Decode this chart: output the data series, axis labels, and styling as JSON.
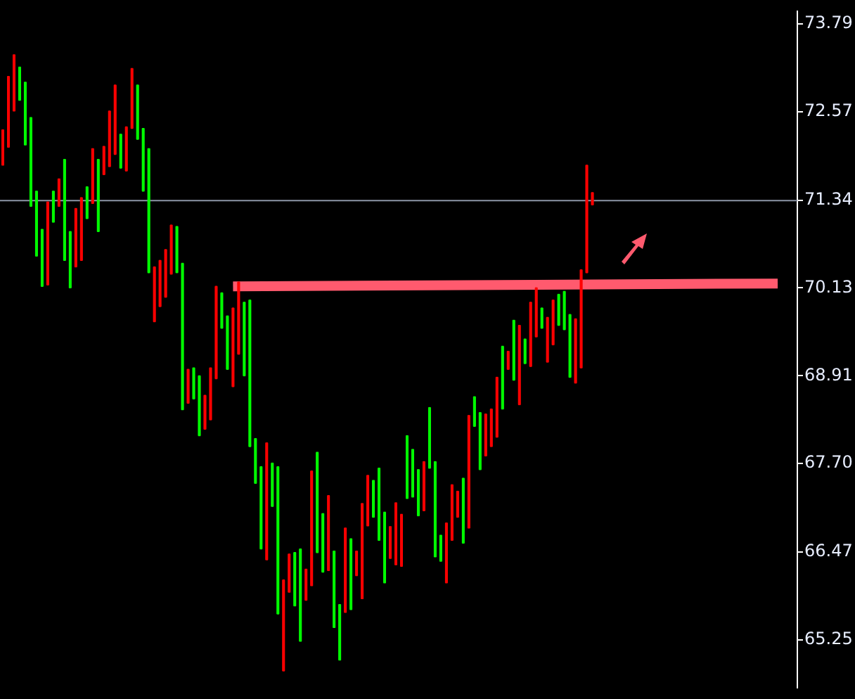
{
  "chart_data": {
    "type": "candlestick",
    "categories": [
      null,
      null,
      null,
      null,
      null,
      null,
      null,
      null,
      null,
      null,
      null,
      null,
      null,
      null,
      null,
      null,
      null,
      null,
      null,
      null,
      null,
      null,
      null,
      null,
      null,
      null,
      null,
      null,
      null,
      null,
      null,
      null,
      null,
      null,
      null,
      null,
      null,
      null,
      null,
      null,
      null,
      null,
      null,
      null,
      null,
      null,
      null,
      null,
      null,
      null,
      null,
      null,
      null,
      null,
      null,
      null,
      null,
      null,
      null,
      null,
      null,
      null,
      null,
      null,
      null,
      null,
      null,
      null,
      null,
      null,
      null,
      null,
      null,
      null,
      null,
      null,
      null,
      null,
      null,
      null,
      null,
      null,
      null,
      null,
      null,
      null,
      null,
      null,
      null,
      null,
      null,
      null,
      null,
      null,
      null,
      null,
      null,
      null,
      null,
      null,
      null,
      null,
      null,
      null,
      null,
      null,
      null,
      null,
      null,
      null,
      null,
      null,
      null,
      null,
      null,
      null,
      null,
      null,
      null,
      null,
      null,
      null,
      null,
      null,
      null,
      null,
      null,
      null,
      null,
      null,
      null,
      null,
      null,
      null,
      null,
      null,
      null,
      null,
      null,
      null,
      null,
      null
    ],
    "ohlc": [
      [
        71.83,
        72.32,
        71.83,
        72.32
      ],
      [
        72.08,
        73.06,
        72.08,
        73.06
      ],
      [
        72.58,
        73.36,
        72.58,
        73.36
      ],
      [
        73.19,
        73.19,
        72.73,
        72.73
      ],
      [
        72.98,
        72.98,
        72.11,
        72.11
      ],
      [
        72.49,
        72.49,
        71.26,
        71.26
      ],
      [
        71.47,
        71.47,
        70.57,
        70.57
      ],
      [
        70.94,
        70.94,
        70.15,
        70.15
      ],
      [
        70.17,
        71.32,
        70.17,
        71.32
      ],
      [
        71.47,
        71.47,
        71.04,
        71.04
      ],
      [
        71.26,
        71.64,
        71.26,
        71.64
      ],
      [
        71.91,
        71.91,
        70.51,
        70.51
      ],
      [
        70.91,
        70.91,
        70.13,
        70.13
      ],
      [
        70.42,
        71.23,
        70.42,
        71.23
      ],
      [
        70.51,
        71.38,
        70.51,
        71.38
      ],
      [
        71.53,
        71.53,
        71.09,
        71.09
      ],
      [
        71.3,
        72.06,
        71.3,
        72.06
      ],
      [
        71.91,
        71.91,
        70.91,
        70.91
      ],
      [
        71.7,
        72.09,
        71.7,
        72.09
      ],
      [
        71.81,
        72.58,
        71.81,
        72.58
      ],
      [
        71.98,
        72.94,
        71.98,
        72.94
      ],
      [
        72.26,
        72.26,
        71.79,
        71.79
      ],
      [
        71.75,
        72.36,
        71.75,
        72.36
      ],
      [
        72.34,
        73.17,
        72.34,
        73.17
      ],
      [
        72.94,
        72.94,
        72.19,
        72.19
      ],
      [
        72.34,
        72.34,
        71.47,
        71.47
      ],
      [
        72.06,
        72.06,
        70.34,
        70.34
      ],
      [
        69.66,
        70.42,
        69.66,
        70.42
      ],
      [
        69.87,
        70.51,
        69.87,
        70.51
      ],
      [
        70.0,
        70.66,
        70.0,
        70.66
      ],
      [
        70.32,
        71.0,
        70.32,
        71.0
      ],
      [
        70.98,
        70.98,
        70.34,
        70.34
      ],
      [
        70.47,
        70.47,
        68.44,
        68.44
      ],
      [
        68.53,
        69.0,
        68.53,
        69.0
      ],
      [
        69.02,
        69.02,
        68.59,
        68.59
      ],
      [
        68.91,
        68.91,
        68.08,
        68.08
      ],
      [
        68.17,
        68.64,
        68.17,
        68.64
      ],
      [
        68.3,
        69.02,
        68.3,
        69.02
      ],
      [
        68.87,
        70.15,
        68.87,
        70.15
      ],
      [
        70.06,
        70.06,
        69.57,
        69.57
      ],
      [
        69.74,
        69.74,
        69.0,
        69.0
      ],
      [
        68.76,
        69.85,
        68.76,
        69.85
      ],
      [
        69.21,
        70.21,
        69.21,
        70.21
      ],
      [
        69.93,
        69.93,
        68.91,
        68.91
      ],
      [
        69.96,
        69.96,
        67.93,
        67.93
      ],
      [
        68.04,
        68.04,
        67.42,
        67.42
      ],
      [
        67.65,
        67.65,
        66.51,
        66.51
      ],
      [
        66.36,
        67.98,
        66.36,
        67.98
      ],
      [
        67.7,
        67.7,
        67.1,
        67.1
      ],
      [
        67.65,
        67.65,
        65.61,
        65.61
      ],
      [
        64.82,
        66.08,
        64.82,
        66.08
      ],
      [
        65.91,
        66.44,
        65.91,
        66.44
      ],
      [
        66.46,
        66.46,
        65.72,
        65.72
      ],
      [
        66.51,
        66.51,
        65.23,
        65.23
      ],
      [
        65.8,
        66.23,
        65.8,
        66.23
      ],
      [
        66.0,
        67.59,
        66.0,
        67.59
      ],
      [
        67.85,
        67.85,
        66.46,
        66.46
      ],
      [
        67.0,
        67.0,
        66.19,
        66.19
      ],
      [
        66.21,
        67.25,
        66.21,
        67.25
      ],
      [
        66.48,
        66.48,
        65.42,
        65.42
      ],
      [
        65.74,
        65.74,
        64.97,
        64.97
      ],
      [
        65.63,
        66.8,
        65.63,
        66.8
      ],
      [
        66.65,
        66.65,
        65.67,
        65.67
      ],
      [
        66.14,
        66.48,
        66.14,
        66.48
      ],
      [
        65.82,
        67.14,
        65.82,
        67.14
      ],
      [
        66.83,
        67.53,
        66.83,
        67.53
      ],
      [
        67.46,
        67.46,
        66.95,
        66.95
      ],
      [
        67.63,
        67.63,
        66.63,
        66.63
      ],
      [
        67.02,
        67.02,
        66.04,
        66.04
      ],
      [
        66.38,
        66.82,
        66.38,
        66.82
      ],
      [
        66.29,
        67.15,
        66.29,
        67.15
      ],
      [
        66.27,
        66.99,
        66.27,
        66.99
      ],
      [
        68.08,
        68.08,
        67.21,
        67.21
      ],
      [
        67.89,
        67.89,
        67.23,
        67.23
      ],
      [
        67.61,
        67.61,
        66.97,
        66.97
      ],
      [
        67.04,
        67.72,
        67.04,
        67.72
      ],
      [
        68.47,
        68.47,
        67.63,
        67.63
      ],
      [
        67.72,
        67.72,
        66.4,
        66.4
      ],
      [
        66.7,
        66.7,
        66.34,
        66.34
      ],
      [
        66.04,
        66.87,
        66.04,
        66.87
      ],
      [
        66.63,
        67.4,
        66.63,
        67.4
      ],
      [
        66.95,
        67.31,
        66.95,
        67.31
      ],
      [
        67.49,
        67.49,
        66.59,
        66.59
      ],
      [
        66.8,
        68.36,
        66.8,
        68.36
      ],
      [
        68.62,
        68.62,
        68.21,
        68.21
      ],
      [
        68.4,
        68.4,
        67.61,
        67.61
      ],
      [
        67.8,
        68.38,
        67.8,
        68.38
      ],
      [
        67.93,
        68.45,
        67.93,
        68.45
      ],
      [
        68.06,
        68.89,
        68.06,
        68.89
      ],
      [
        69.32,
        69.32,
        68.45,
        68.45
      ],
      [
        69.0,
        69.25,
        69.0,
        69.25
      ],
      [
        69.68,
        69.68,
        68.85,
        68.85
      ],
      [
        68.51,
        69.61,
        68.51,
        69.61
      ],
      [
        69.42,
        69.42,
        69.08,
        69.08
      ],
      [
        69.04,
        69.93,
        69.04,
        69.93
      ],
      [
        69.45,
        70.13,
        69.45,
        70.13
      ],
      [
        69.85,
        69.85,
        69.57,
        69.57
      ],
      [
        69.1,
        69.72,
        69.1,
        69.72
      ],
      [
        69.34,
        69.96,
        69.34,
        69.96
      ],
      [
        70.04,
        70.04,
        69.61,
        69.61
      ],
      [
        70.08,
        70.08,
        69.55,
        69.55
      ],
      [
        69.76,
        69.76,
        68.89,
        68.89
      ],
      [
        68.81,
        69.7,
        68.81,
        69.7
      ],
      [
        69.02,
        70.38,
        69.02,
        70.38
      ],
      [
        70.34,
        71.83,
        70.34,
        71.83
      ],
      [
        71.28,
        71.45,
        71.28,
        71.45
      ],
      null,
      null,
      null,
      null,
      null,
      null,
      null,
      null,
      null,
      null,
      null,
      null,
      null,
      null,
      null,
      null,
      null,
      null,
      null,
      null,
      null,
      null,
      null,
      null,
      null,
      null,
      null,
      null,
      null,
      null,
      null,
      null,
      null,
      null,
      null,
      null
    ],
    "colors": [
      "#ff0000",
      "#ff0000",
      "#ff0000",
      "#00ff00",
      "#00ff00",
      "#00ff00",
      "#00ff00",
      "#00ff00",
      "#ff0000",
      "#00ff00",
      "#ff0000",
      "#00ff00",
      "#00ff00",
      "#ff0000",
      "#ff0000",
      "#00ff00",
      "#ff0000",
      "#00ff00",
      "#ff0000",
      "#ff0000",
      "#ff0000",
      "#00ff00",
      "#ff0000",
      "#ff0000",
      "#00ff00",
      "#00ff00",
      "#00ff00",
      "#ff0000",
      "#ff0000",
      "#ff0000",
      "#ff0000",
      "#00ff00",
      "#00ff00",
      "#ff0000",
      "#00ff00",
      "#00ff00",
      "#ff0000",
      "#ff0000",
      "#ff0000",
      "#00ff00",
      "#00ff00",
      "#ff0000",
      "#ff0000",
      "#00ff00",
      "#00ff00",
      "#00ff00",
      "#00ff00",
      "#ff0000",
      "#00ff00",
      "#00ff00",
      "#ff0000",
      "#ff0000",
      "#00ff00",
      "#00ff00",
      "#ff0000",
      "#ff0000",
      "#00ff00",
      "#00ff00",
      "#ff0000",
      "#00ff00",
      "#00ff00",
      "#ff0000",
      "#00ff00",
      "#ff0000",
      "#ff0000",
      "#ff0000",
      "#00ff00",
      "#00ff00",
      "#00ff00",
      "#ff0000",
      "#ff0000",
      "#ff0000",
      "#00ff00",
      "#00ff00",
      "#00ff00",
      "#ff0000",
      "#00ff00",
      "#00ff00",
      "#00ff00",
      "#ff0000",
      "#ff0000",
      "#ff0000",
      "#00ff00",
      "#ff0000",
      "#00ff00",
      "#00ff00",
      "#ff0000",
      "#ff0000",
      "#ff0000",
      "#00ff00",
      "#ff0000",
      "#00ff00",
      "#ff0000",
      "#00ff00",
      "#ff0000",
      "#ff0000",
      "#00ff00",
      "#ff0000",
      "#ff0000",
      "#00ff00",
      "#00ff00",
      "#00ff00",
      "#ff0000",
      "#ff0000",
      "#ff0000",
      "#ff0000",
      null,
      null,
      null,
      null,
      null,
      null,
      null,
      null,
      null,
      null,
      null,
      null,
      null,
      null,
      null,
      null,
      null,
      null,
      null,
      null,
      null,
      null,
      null,
      null,
      null,
      null,
      null,
      null,
      null,
      null,
      null,
      null,
      null,
      null,
      null,
      null
    ],
    "series": [
      {
        "type": "line",
        "color": "#ff5a6e",
        "values": [
          null,
          null,
          null,
          null,
          null,
          null,
          null,
          null,
          null,
          null,
          null,
          null,
          null,
          null,
          null,
          null,
          null,
          null,
          null,
          null,
          null,
          null,
          null,
          null,
          null,
          null,
          null,
          null,
          null,
          null,
          null,
          null,
          null,
          null,
          null,
          null,
          null,
          null,
          null,
          null,
          null,
          70.15,
          null,
          null,
          null,
          null,
          null,
          null,
          null,
          null,
          null,
          null,
          null,
          null,
          null,
          null,
          null,
          null,
          null,
          null,
          null,
          null,
          null,
          null,
          null,
          null,
          null,
          null,
          null,
          null,
          null,
          null,
          null,
          null,
          null,
          null,
          null,
          null,
          null,
          null,
          null,
          null,
          null,
          null,
          null,
          null,
          null,
          null,
          null,
          null,
          null,
          null,
          null,
          null,
          null,
          null,
          null,
          null,
          null,
          null,
          null,
          null,
          null,
          null,
          null,
          null,
          null,
          null,
          null,
          null,
          null,
          null,
          null,
          null,
          null,
          null,
          null,
          null,
          null,
          null,
          null,
          null,
          null,
          null,
          null,
          null,
          null,
          null,
          null,
          null,
          null,
          null,
          null,
          null,
          null,
          null,
          null,
          null,
          70.19,
          null,
          null,
          null
        ]
      }
    ],
    "ylim": [
      64.59,
      73.96
    ],
    "yticks": [
      73.79,
      72.57,
      71.34,
      70.13,
      68.91,
      {
        "value": 67.7,
        "label": "67.70"
      },
      66.47,
      65.25
    ],
    "ref_lines": [
      {
        "axis": "y",
        "value": 71.34,
        "color": "#8c95a6"
      }
    ],
    "grid": false,
    "legend": false,
    "tick_labels": "y"
  }
}
